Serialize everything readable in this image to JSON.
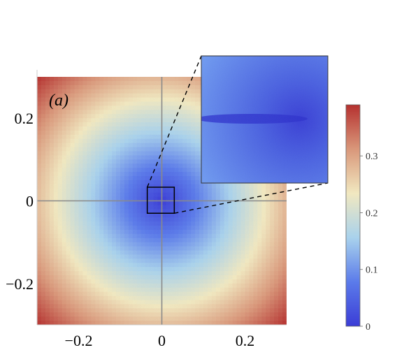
{
  "chart_data": {
    "type": "heatmap",
    "panel_label": "(a)",
    "xlim": [
      -0.3,
      0.3
    ],
    "ylim": [
      -0.3,
      0.3
    ],
    "x_ticks": [
      {
        "value": -0.2,
        "label": "−0.2"
      },
      {
        "value": 0,
        "label": "0"
      },
      {
        "value": 0.2,
        "label": "0.2"
      }
    ],
    "y_ticks": [
      {
        "value": 0.2,
        "label": "0.2"
      },
      {
        "value": 0,
        "label": "0"
      },
      {
        "value": -0.2,
        "label": "−0.2"
      }
    ],
    "crosshair_at_origin": true,
    "value_field": "distance from origin",
    "zoom_box": {
      "x": [
        -0.035,
        0.03
      ],
      "y": [
        -0.03,
        0.033
      ]
    },
    "inset": {
      "description": "zoomed view of boxed region near origin",
      "min_line_y": 0
    },
    "colorbar": {
      "range": [
        0,
        0.39
      ],
      "ticks": [
        {
          "value": 0,
          "label": "0"
        },
        {
          "value": 0.1,
          "label": "0.1"
        },
        {
          "value": 0.2,
          "label": "0.2"
        },
        {
          "value": 0.3,
          "label": "0.3"
        }
      ],
      "colormap": [
        "#3b3dd6",
        "#5b7bea",
        "#a9d2ec",
        "#f1e8c0",
        "#d9977a",
        "#b5312f"
      ]
    },
    "title": "",
    "xlabel": "",
    "ylabel": ""
  }
}
